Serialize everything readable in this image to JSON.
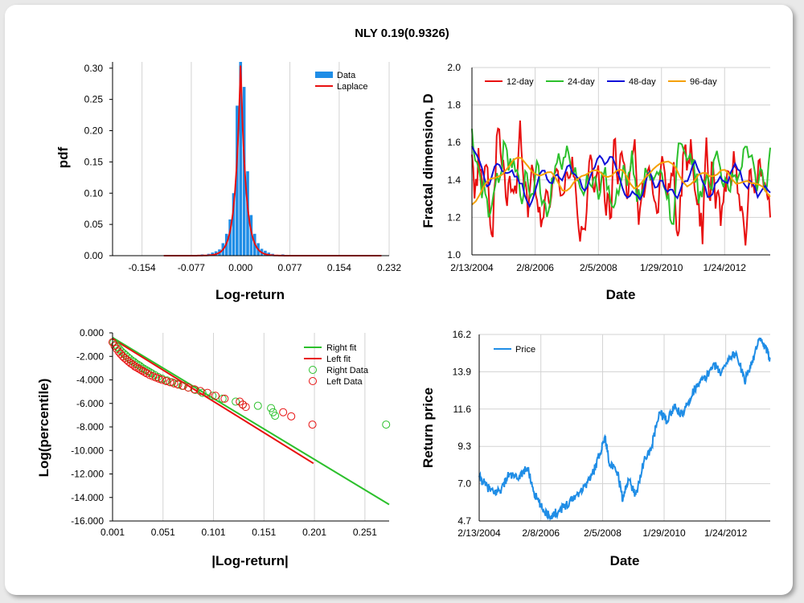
{
  "title": "NLY 0.19(0.9326)",
  "colors": {
    "hist": "#1f8de6",
    "laplace": "#e81010",
    "d12": "#e81010",
    "d24": "#2cc02c",
    "d48": "#1010d8",
    "d96": "#f5a000",
    "right": "#2cc02c",
    "left": "#e81010",
    "price": "#1f8de6",
    "grid": "#d3d3d3"
  },
  "chart_data": [
    {
      "id": "pdf",
      "type": "bar",
      "xlabel": "Log-return",
      "ylabel": "pdf",
      "xlim": [
        -0.2,
        0.232
      ],
      "ylim": [
        0,
        0.31
      ],
      "xticks": [
        -0.154,
        -0.077,
        0.0,
        0.077,
        0.154,
        0.232
      ],
      "xtick_labels": [
        "-0.154",
        "-0.077",
        "0.000",
        "0.077",
        "0.154",
        "0.232"
      ],
      "yticks": [
        0,
        0.05,
        0.1,
        0.15,
        0.2,
        0.25,
        0.3
      ],
      "ytick_labels": [
        "0.00",
        "0.05",
        "0.10",
        "0.15",
        "0.20",
        "0.25",
        "0.30"
      ],
      "legend": [
        "Data",
        "Laplace"
      ],
      "bin_width": 0.0055,
      "bins": [
        [
          -0.11,
          0.001
        ],
        [
          -0.082,
          0.001
        ],
        [
          -0.06,
          0.002
        ],
        [
          -0.05,
          0.003
        ],
        [
          -0.044,
          0.005
        ],
        [
          -0.0385,
          0.007
        ],
        [
          -0.033,
          0.01
        ],
        [
          -0.0275,
          0.02
        ],
        [
          -0.022,
          0.035
        ],
        [
          -0.0165,
          0.058
        ],
        [
          -0.011,
          0.1
        ],
        [
          -0.0055,
          0.24
        ],
        [
          0.0,
          0.31
        ],
        [
          0.0055,
          0.27
        ],
        [
          0.011,
          0.135
        ],
        [
          0.0165,
          0.065
        ],
        [
          0.022,
          0.035
        ],
        [
          0.0275,
          0.02
        ],
        [
          0.033,
          0.011
        ],
        [
          0.0385,
          0.008
        ],
        [
          0.044,
          0.005
        ],
        [
          0.05,
          0.003
        ],
        [
          0.066,
          0.002
        ],
        [
          0.088,
          0.001
        ],
        [
          0.12,
          0.001
        ]
      ],
      "laplace": {
        "mu": 0.0,
        "b": 0.0017,
        "peak": 0.31
      }
    },
    {
      "id": "fractal",
      "type": "line",
      "xlabel": "Date",
      "ylabel": "Fractal dimension, D",
      "ylim": [
        1.0,
        2.0
      ],
      "x_range": [
        "2/13/2004",
        "7/1/2013"
      ],
      "xticks": [
        "2/13/2004",
        "2/8/2006",
        "2/5/2008",
        "1/29/2010",
        "1/24/2012"
      ],
      "yticks": [
        1.0,
        1.2,
        1.4,
        1.6,
        1.8,
        2.0
      ],
      "ytick_labels": [
        "1.0",
        "1.2",
        "1.4",
        "1.6",
        "1.8",
        "2.0"
      ],
      "series": [
        {
          "name": "12-day",
          "key": "d12"
        },
        {
          "name": "24-day",
          "key": "d24"
        },
        {
          "name": "48-day",
          "key": "d48"
        },
        {
          "name": "96-day",
          "key": "d96"
        }
      ]
    },
    {
      "id": "tail",
      "type": "scatter",
      "xlabel": "|Log-return|",
      "ylabel": "Log(percentile)",
      "xlim": [
        0.001,
        0.275
      ],
      "ylim": [
        -16,
        0
      ],
      "xticks": [
        0.001,
        0.051,
        0.101,
        0.151,
        0.201,
        0.251
      ],
      "xtick_labels": [
        "0.001",
        "0.051",
        "0.101",
        "0.151",
        "0.201",
        "0.251"
      ],
      "yticks": [
        0,
        -2,
        -4,
        -6,
        -8,
        -10,
        -12,
        -14,
        -16
      ],
      "ytick_labels": [
        "0.000",
        "-2.000",
        "-4.000",
        "-6.000",
        "-8.000",
        "-10.000",
        "-12.000",
        "-14.000",
        "-16.000"
      ],
      "legend": [
        "Right fit",
        "Left fit",
        "Right Data",
        "Left Data"
      ],
      "right_fit": [
        [
          0.001,
          -0.4
        ],
        [
          0.275,
          -14.6
        ]
      ],
      "left_fit": [
        [
          0.001,
          -0.5
        ],
        [
          0.2,
          -11.1
        ]
      ],
      "right_data": [
        [
          0.002,
          -0.8
        ],
        [
          0.004,
          -1.0
        ],
        [
          0.006,
          -1.2
        ],
        [
          0.008,
          -1.4
        ],
        [
          0.01,
          -1.6
        ],
        [
          0.012,
          -1.75
        ],
        [
          0.014,
          -1.9
        ],
        [
          0.016,
          -2.05
        ],
        [
          0.018,
          -2.2
        ],
        [
          0.02,
          -2.35
        ],
        [
          0.022,
          -2.45
        ],
        [
          0.024,
          -2.6
        ],
        [
          0.026,
          -2.7
        ],
        [
          0.028,
          -2.8
        ],
        [
          0.03,
          -2.95
        ],
        [
          0.032,
          -3.05
        ],
        [
          0.034,
          -3.15
        ],
        [
          0.036,
          -3.25
        ],
        [
          0.038,
          -3.35
        ],
        [
          0.04,
          -3.45
        ],
        [
          0.043,
          -3.6
        ],
        [
          0.046,
          -3.75
        ],
        [
          0.05,
          -3.9
        ],
        [
          0.055,
          -4.05
        ],
        [
          0.06,
          -4.2
        ],
        [
          0.065,
          -4.35
        ],
        [
          0.07,
          -4.5
        ],
        [
          0.076,
          -4.65
        ],
        [
          0.083,
          -4.85
        ],
        [
          0.09,
          -5.1
        ],
        [
          0.1,
          -5.35
        ],
        [
          0.11,
          -5.6
        ],
        [
          0.123,
          -5.85
        ],
        [
          0.13,
          -6.1
        ],
        [
          0.145,
          -6.2
        ],
        [
          0.158,
          -6.4
        ],
        [
          0.16,
          -6.75
        ],
        [
          0.162,
          -7.05
        ],
        [
          0.272,
          -7.8
        ]
      ],
      "left_data": [
        [
          0.001,
          -0.8
        ],
        [
          0.003,
          -1.1
        ],
        [
          0.005,
          -1.35
        ],
        [
          0.007,
          -1.6
        ],
        [
          0.009,
          -1.8
        ],
        [
          0.011,
          -2.0
        ],
        [
          0.013,
          -2.15
        ],
        [
          0.015,
          -2.3
        ],
        [
          0.017,
          -2.45
        ],
        [
          0.019,
          -2.6
        ],
        [
          0.021,
          -2.7
        ],
        [
          0.023,
          -2.85
        ],
        [
          0.025,
          -2.95
        ],
        [
          0.027,
          -3.05
        ],
        [
          0.029,
          -3.15
        ],
        [
          0.031,
          -3.25
        ],
        [
          0.033,
          -3.35
        ],
        [
          0.035,
          -3.45
        ],
        [
          0.038,
          -3.6
        ],
        [
          0.041,
          -3.7
        ],
        [
          0.044,
          -3.8
        ],
        [
          0.047,
          -3.9
        ],
        [
          0.05,
          -4.0
        ],
        [
          0.054,
          -4.1
        ],
        [
          0.058,
          -4.2
        ],
        [
          0.062,
          -4.3
        ],
        [
          0.066,
          -4.4
        ],
        [
          0.071,
          -4.5
        ],
        [
          0.076,
          -4.65
        ],
        [
          0.082,
          -4.8
        ],
        [
          0.088,
          -4.95
        ],
        [
          0.095,
          -5.1
        ],
        [
          0.103,
          -5.35
        ],
        [
          0.112,
          -5.6
        ],
        [
          0.127,
          -5.85
        ],
        [
          0.13,
          -6.1
        ],
        [
          0.133,
          -6.3
        ],
        [
          0.17,
          -6.75
        ],
        [
          0.178,
          -7.1
        ],
        [
          0.199,
          -7.8
        ]
      ]
    },
    {
      "id": "price",
      "type": "line",
      "xlabel": "Date",
      "ylabel": "Return price",
      "ylim": [
        4.7,
        16.2
      ],
      "x_range": [
        "2/13/2004",
        "7/1/2013"
      ],
      "xticks": [
        "2/13/2004",
        "2/8/2006",
        "2/5/2008",
        "1/29/2010",
        "1/24/2012"
      ],
      "yticks": [
        4.7,
        7.0,
        9.3,
        11.6,
        13.9,
        16.2
      ],
      "ytick_labels": [
        "4.7",
        "7.0",
        "9.3",
        "11.6",
        "13.9",
        "16.2"
      ],
      "legend": [
        "Price"
      ],
      "anchors": [
        [
          "2/13/2004",
          7.4
        ],
        [
          "5/1/2004",
          6.9
        ],
        [
          "8/1/2004",
          6.4
        ],
        [
          "11/1/2004",
          6.7
        ],
        [
          "2/1/2005",
          7.6
        ],
        [
          "5/1/2005",
          7.3
        ],
        [
          "9/1/2005",
          8.0
        ],
        [
          "12/1/2005",
          6.3
        ],
        [
          "3/1/2006",
          5.4
        ],
        [
          "6/1/2006",
          5.0
        ],
        [
          "9/1/2006",
          5.3
        ],
        [
          "12/1/2006",
          5.7
        ],
        [
          "4/1/2007",
          6.3
        ],
        [
          "7/1/2007",
          6.8
        ],
        [
          "10/1/2007",
          7.5
        ],
        [
          "1/1/2008",
          8.8
        ],
        [
          "3/1/2008",
          9.9
        ],
        [
          "5/1/2008",
          8.2
        ],
        [
          "8/1/2008",
          7.6
        ],
        [
          "10/1/2008",
          6.0
        ],
        [
          "12/1/2008",
          7.3
        ],
        [
          "3/1/2009",
          6.3
        ],
        [
          "6/1/2009",
          8.3
        ],
        [
          "9/1/2009",
          9.2
        ],
        [
          "12/1/2009",
          11.4
        ],
        [
          "3/1/2010",
          10.9
        ],
        [
          "6/1/2010",
          11.7
        ],
        [
          "9/1/2010",
          11.2
        ],
        [
          "12/1/2010",
          12.3
        ],
        [
          "3/1/2011",
          13.2
        ],
        [
          "6/1/2011",
          13.5
        ],
        [
          "9/1/2011",
          14.4
        ],
        [
          "12/1/2011",
          13.8
        ],
        [
          "3/1/2012",
          14.8
        ],
        [
          "6/1/2012",
          15.0
        ],
        [
          "9/1/2012",
          13.3
        ],
        [
          "12/1/2012",
          14.6
        ],
        [
          "3/1/2013",
          15.9
        ],
        [
          "5/1/2013",
          15.4
        ],
        [
          "7/1/2013",
          14.7
        ]
      ]
    }
  ]
}
